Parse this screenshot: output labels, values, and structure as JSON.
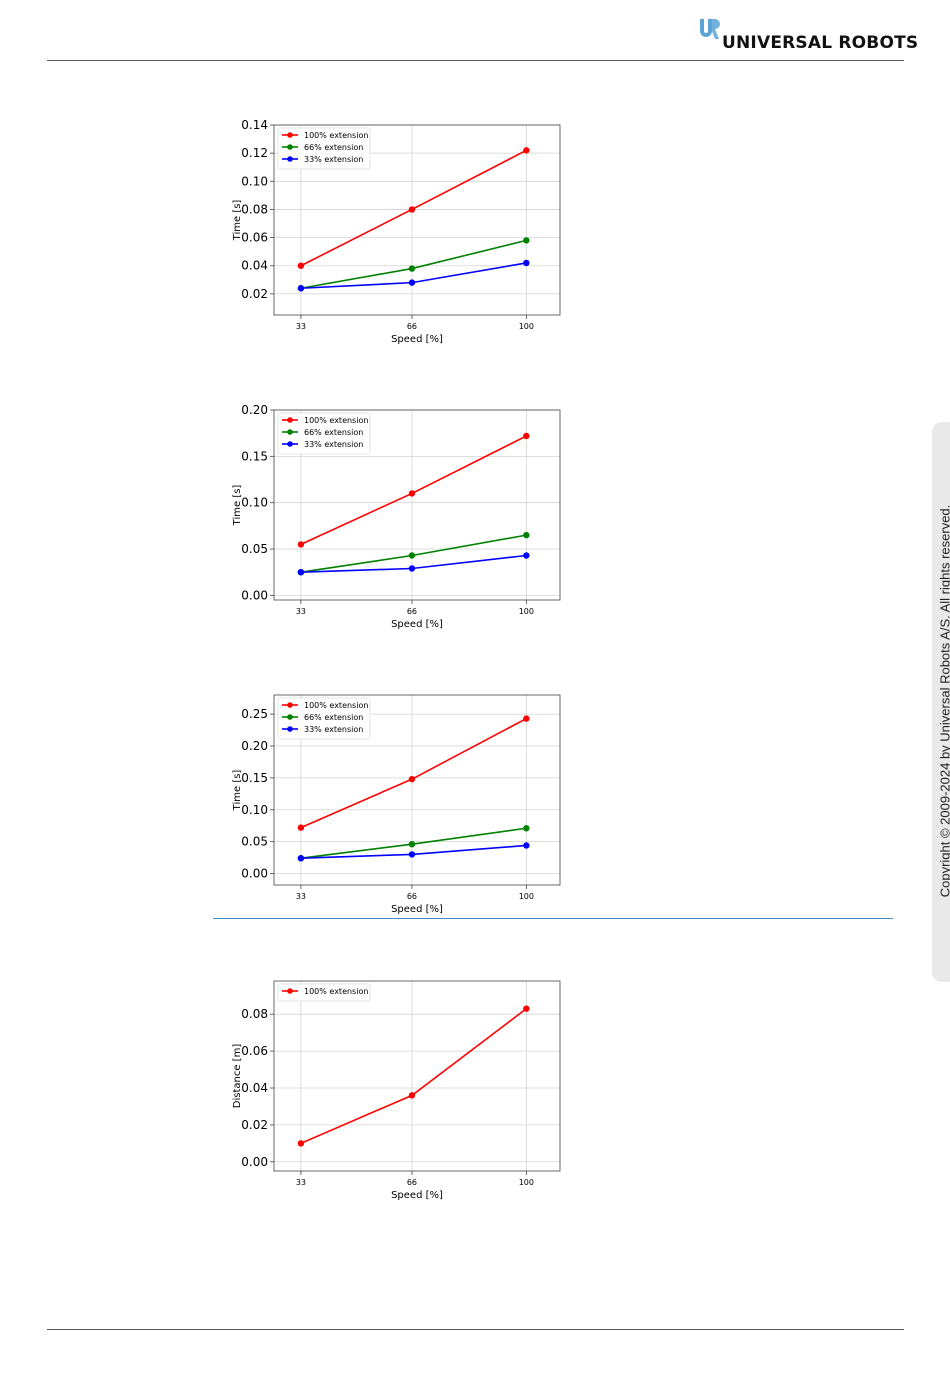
{
  "header": {
    "brand": "UNIVERSAL ROBOTS",
    "logo_icon": "ur-logo-icon",
    "brand_color": "#5aa5d6"
  },
  "sidebar": {
    "copyright": "Copyright © 2009-2024 by Universal Robots A/S. All rights reserved."
  },
  "chart_data": [
    {
      "type": "line",
      "x": [
        33,
        66,
        100
      ],
      "xticks": [
        "33",
        "66",
        "100"
      ],
      "xlabel": "Speed [%]",
      "ylabel": "Time [s]",
      "ylim": [
        0.005,
        0.14
      ],
      "yticks": [
        0.02,
        0.04,
        0.06,
        0.08,
        0.1,
        0.12,
        0.14
      ],
      "ytick_labels": [
        "0.02",
        "0.04",
        "0.06",
        "0.08",
        "0.10",
        "0.12",
        "0.14"
      ],
      "grid": true,
      "legend": "top-left",
      "series": [
        {
          "name": "100% extension",
          "color": "#ff0000",
          "values": [
            0.04,
            0.08,
            0.122
          ]
        },
        {
          "name": "66% extension",
          "color": "#008000",
          "values": [
            0.024,
            0.038,
            0.058
          ]
        },
        {
          "name": "33% extension",
          "color": "#0000ff",
          "values": [
            0.024,
            0.028,
            0.042
          ]
        }
      ]
    },
    {
      "type": "line",
      "x": [
        33,
        66,
        100
      ],
      "xticks": [
        "33",
        "66",
        "100"
      ],
      "xlabel": "Speed [%]",
      "ylabel": "Time [s]",
      "ylim": [
        -0.005,
        0.2
      ],
      "yticks": [
        0.0,
        0.05,
        0.1,
        0.15,
        0.2
      ],
      "ytick_labels": [
        "0.00",
        "0.05",
        "0.10",
        "0.15",
        "0.20"
      ],
      "grid": true,
      "legend": "top-left",
      "series": [
        {
          "name": "100% extension",
          "color": "#ff0000",
          "values": [
            0.055,
            0.11,
            0.172
          ]
        },
        {
          "name": "66% extension",
          "color": "#008000",
          "values": [
            0.025,
            0.043,
            0.065
          ]
        },
        {
          "name": "33% extension",
          "color": "#0000ff",
          "values": [
            0.025,
            0.029,
            0.043
          ]
        }
      ]
    },
    {
      "type": "line",
      "x": [
        33,
        66,
        100
      ],
      "xticks": [
        "33",
        "66",
        "100"
      ],
      "xlabel": "Speed [%]",
      "ylabel": "Time [s]",
      "ylim": [
        -0.018,
        0.28
      ],
      "yticks": [
        0.0,
        0.05,
        0.1,
        0.15,
        0.2,
        0.25
      ],
      "ytick_labels": [
        "0.00",
        "0.05",
        "0.10",
        "0.15",
        "0.20",
        "0.25"
      ],
      "grid": true,
      "legend": "top-left",
      "series": [
        {
          "name": "100% extension",
          "color": "#ff0000",
          "values": [
            0.072,
            0.148,
            0.243
          ]
        },
        {
          "name": "66% extension",
          "color": "#008000",
          "values": [
            0.024,
            0.046,
            0.071
          ]
        },
        {
          "name": "33% extension",
          "color": "#0000ff",
          "values": [
            0.024,
            0.03,
            0.044
          ]
        }
      ]
    },
    {
      "type": "line",
      "x": [
        33,
        66,
        100
      ],
      "xticks": [
        "33",
        "66",
        "100"
      ],
      "xlabel": "Speed [%]",
      "ylabel": "Distance [m]",
      "ylim": [
        -0.005,
        0.098
      ],
      "yticks": [
        0.0,
        0.02,
        0.04,
        0.06,
        0.08
      ],
      "ytick_labels": [
        "0.00",
        "0.02",
        "0.04",
        "0.06",
        "0.08"
      ],
      "grid": true,
      "legend": "top-left",
      "series": [
        {
          "name": "100% extension",
          "color": "#ff0000",
          "values": [
            0.01,
            0.036,
            0.083
          ]
        }
      ]
    }
  ]
}
